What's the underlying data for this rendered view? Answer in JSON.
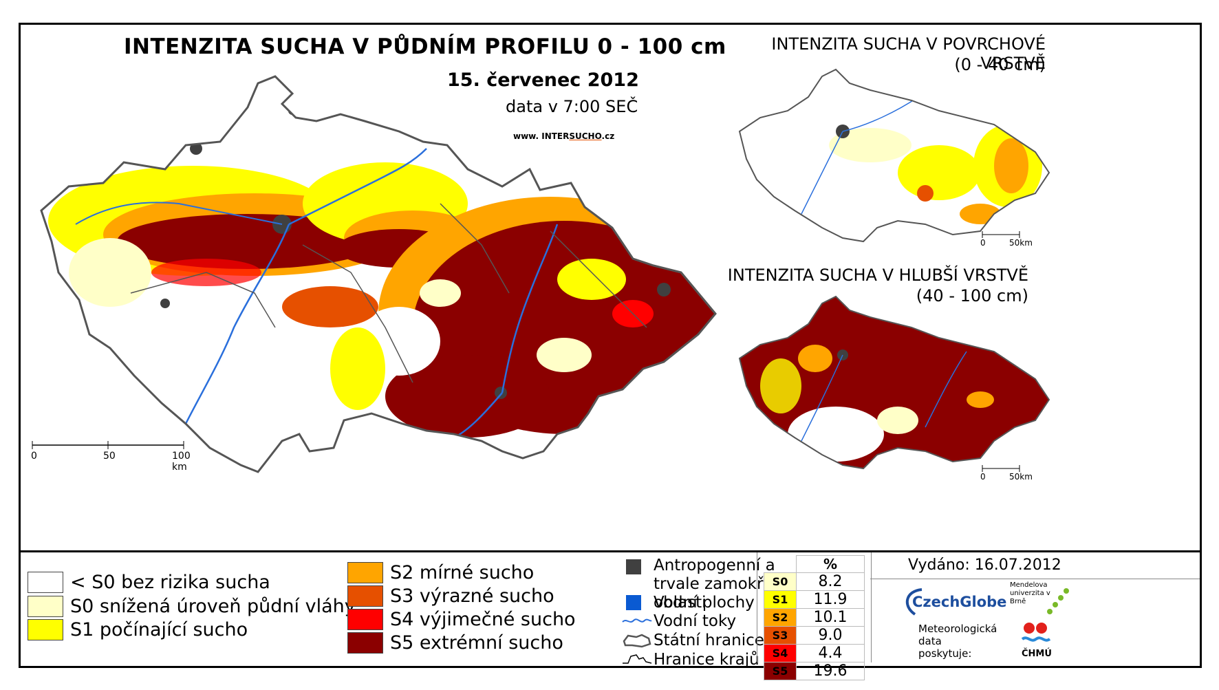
{
  "main_map": {
    "title": "INTENZITA SUCHA V PŮDNÍM PROFILU 0 - 100 cm",
    "date": "15. červenec 2012",
    "time_note": "data v 7:00 SEČ",
    "website_prefix": "www. INTER",
    "website_brand": "SUCHO",
    "website_suffix": ".cz",
    "scale": {
      "zero": "0",
      "mid": "50",
      "end": "100 km"
    }
  },
  "inset_top": {
    "title": "INTENZITA SUCHA V POVRCHOVÉ VRSTVĚ",
    "depth": "(0 - 40 cm)",
    "scale": {
      "zero": "0",
      "end": "50km"
    }
  },
  "inset_bottom": {
    "title": "INTENZITA SUCHA V HLUBŠÍ VRSTVĚ",
    "depth": "(40 - 100 cm)",
    "scale": {
      "zero": "0",
      "end": "50km"
    }
  },
  "legend": {
    "classes": [
      {
        "label": "< S0 bez rizika sucha",
        "color": "#ffffff"
      },
      {
        "label": "S0 snížená úroveň půdní vláhy",
        "color": "#ffffc8"
      },
      {
        "label": "S1 počínající sucho",
        "color": "#ffff00"
      },
      {
        "label": "S2 mírné sucho",
        "color": "#ffa500"
      },
      {
        "label": "S3 výrazné sucho",
        "color": "#e65000"
      },
      {
        "label": "S4 výjimečné sucho",
        "color": "#ff0000"
      },
      {
        "label": "S5 extrémní sucho",
        "color": "#8b0000"
      }
    ],
    "symbols": [
      {
        "label": "Antropogenní a trvale zamokřené oblasti",
        "icon": "dark-square-icon",
        "color": "#404040"
      },
      {
        "label": "Vodní plochy",
        "icon": "blue-square-icon",
        "color": "#0a5ad2"
      },
      {
        "label": "Vodní toky",
        "icon": "river-line-icon",
        "color": "#2a6fdc"
      },
      {
        "label": "Státní hranice",
        "icon": "state-border-icon",
        "color": "#555555"
      },
      {
        "label": "Hranice krajů",
        "icon": "region-border-icon",
        "color": "#000000"
      }
    ]
  },
  "percent_table": {
    "header": "%",
    "rows": [
      {
        "class": "S0",
        "value": "8.2",
        "color": "#ffffc8"
      },
      {
        "class": "S1",
        "value": "11.9",
        "color": "#ffff00"
      },
      {
        "class": "S2",
        "value": "10.1",
        "color": "#ffa500"
      },
      {
        "class": "S3",
        "value": "9.0",
        "color": "#e65000"
      },
      {
        "class": "S4",
        "value": "4.4",
        "color": "#ff0000"
      },
      {
        "class": "S5",
        "value": "19.6",
        "color": "#8b0000"
      }
    ]
  },
  "issued": "Vydáno: 16.07.2012",
  "credits": {
    "czechglobe": "CzechGlobe",
    "mendel": "Mendelova univerzita v Brně",
    "data_note": "Meteorologická data poskytuje:",
    "chmu": "ČHMÚ"
  }
}
